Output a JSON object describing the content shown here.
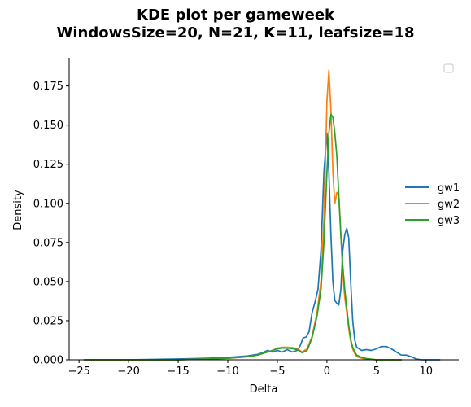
{
  "figure": {
    "title_line1": "KDE plot per gameweek",
    "title_line2": "WindowsSize=20, N=21, K=11, leafsize=18"
  },
  "chart_data": {
    "type": "line",
    "title": "KDE plot per gameweek\nWindowsSize=20, N=21, K=11, leafsize=18",
    "xlabel": "Delta",
    "ylabel": "Density",
    "xlim": [
      -26,
      13.3
    ],
    "ylim": [
      0,
      0.193
    ],
    "xticks": [
      -25,
      -20,
      -15,
      -10,
      -5,
      0,
      5,
      10
    ],
    "xtick_labels": [
      "−25",
      "−20",
      "−15",
      "−10",
      "−5",
      "0",
      "5",
      "10"
    ],
    "yticks": [
      0,
      0.025,
      0.05,
      0.075,
      0.1,
      0.125,
      0.15,
      0.175
    ],
    "ytick_labels": [
      "0.000",
      "0.025",
      "0.050",
      "0.075",
      "0.100",
      "0.125",
      "0.150",
      "0.175"
    ],
    "grid": false,
    "legend_position": "right",
    "empty_legend_box": "top-right",
    "series": [
      {
        "name": "gw1",
        "color": "#1f77b4",
        "x": [
          -24,
          -20,
          -15,
          -12,
          -10,
          -9,
          -8,
          -7.5,
          -7,
          -6.5,
          -6,
          -5.5,
          -5,
          -4.5,
          -4,
          -3.5,
          -3,
          -2.7,
          -2.4,
          -2.1,
          -1.8,
          -1.5,
          -1.2,
          -0.9,
          -0.6,
          -0.3,
          0,
          0.2,
          0.4,
          0.6,
          0.8,
          1.0,
          1.2,
          1.4,
          1.6,
          1.8,
          2.0,
          2.2,
          2.4,
          2.6,
          2.8,
          3.0,
          3.5,
          4,
          4.5,
          5,
          5.5,
          6,
          6.5,
          7,
          7.5,
          8,
          8.5,
          9,
          9.5,
          10,
          11.4
        ],
        "y": [
          0,
          0,
          0.0005,
          0.001,
          0.0015,
          0.002,
          0.0025,
          0.003,
          0.0035,
          0.0045,
          0.006,
          0.005,
          0.006,
          0.005,
          0.0065,
          0.005,
          0.006,
          0.009,
          0.014,
          0.0145,
          0.018,
          0.03,
          0.037,
          0.045,
          0.07,
          0.12,
          0.145,
          0.12,
          0.08,
          0.05,
          0.038,
          0.036,
          0.035,
          0.045,
          0.07,
          0.08,
          0.084,
          0.078,
          0.05,
          0.025,
          0.013,
          0.008,
          0.006,
          0.0065,
          0.006,
          0.007,
          0.0085,
          0.0085,
          0.007,
          0.005,
          0.003,
          0.003,
          0.002,
          0.0005,
          0,
          0,
          0
        ]
      },
      {
        "name": "gw2",
        "color": "#ff7f0e",
        "x": [
          -24.5,
          -20,
          -15,
          -12,
          -10,
          -9,
          -8,
          -7,
          -6.5,
          -6,
          -5.5,
          -5,
          -4.5,
          -4,
          -3.5,
          -3,
          -2.5,
          -2,
          -1.5,
          -1,
          -0.6,
          -0.3,
          0,
          0.2,
          0.4,
          0.6,
          0.8,
          1.0,
          1.2,
          1.4,
          1.6,
          1.8,
          2.0,
          2.2,
          2.4,
          2.6,
          2.8,
          3.0,
          3.5,
          4,
          5,
          6,
          7.5
        ],
        "y": [
          0,
          0,
          0,
          0.0005,
          0.001,
          0.0015,
          0.002,
          0.003,
          0.004,
          0.005,
          0.006,
          0.0075,
          0.008,
          0.008,
          0.0078,
          0.007,
          0.005,
          0.007,
          0.015,
          0.03,
          0.05,
          0.09,
          0.165,
          0.185,
          0.16,
          0.12,
          0.1,
          0.107,
          0.105,
          0.08,
          0.055,
          0.04,
          0.03,
          0.02,
          0.012,
          0.007,
          0.004,
          0.002,
          0.001,
          0.0005,
          0,
          0,
          0
        ]
      },
      {
        "name": "gw3",
        "color": "#2ca02c",
        "x": [
          -24.5,
          -20,
          -15,
          -12,
          -10,
          -9,
          -8,
          -7,
          -6.5,
          -6,
          -5.5,
          -5,
          -4.5,
          -4,
          -3.5,
          -3,
          -2.5,
          -2,
          -1.5,
          -1,
          -0.6,
          -0.3,
          0,
          0.2,
          0.4,
          0.6,
          0.8,
          1.0,
          1.2,
          1.4,
          1.6,
          1.8,
          2.0,
          2.2,
          2.4,
          2.6,
          2.8,
          3.0,
          3.5,
          4,
          5,
          6,
          7.5
        ],
        "y": [
          0,
          0,
          0,
          0.0005,
          0.001,
          0.0015,
          0.002,
          0.003,
          0.004,
          0.005,
          0.006,
          0.007,
          0.0075,
          0.0075,
          0.0072,
          0.0065,
          0.0045,
          0.006,
          0.014,
          0.028,
          0.045,
          0.075,
          0.12,
          0.145,
          0.157,
          0.155,
          0.145,
          0.13,
          0.105,
          0.08,
          0.06,
          0.045,
          0.033,
          0.022,
          0.013,
          0.008,
          0.005,
          0.003,
          0.0015,
          0.0008,
          0,
          0,
          0
        ]
      }
    ]
  }
}
